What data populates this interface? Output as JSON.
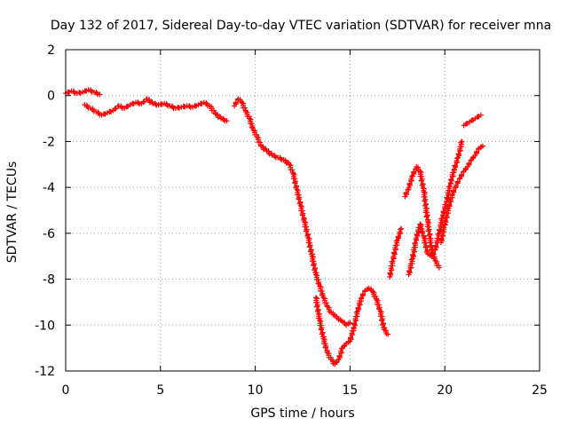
{
  "chart_data": {
    "type": "scatter",
    "title": "Day 132 of 2017, Sidereal Day-to-day VTEC variation (SDTVAR) for receiver mna",
    "xlabel": "GPS time / hours",
    "ylabel": "SDTVAR / TECUs",
    "xlim": [
      0,
      25
    ],
    "ylim": [
      -12,
      2
    ],
    "x_ticks": [
      0,
      5,
      10,
      15,
      20,
      25
    ],
    "y_ticks": [
      2,
      0,
      -2,
      -4,
      -6,
      -8,
      -10,
      -12
    ],
    "x_tick_labels": [
      "0",
      "5",
      "10",
      "15",
      "20",
      "25"
    ],
    "y_tick_labels": [
      "2",
      "0",
      "-2",
      "-4",
      "-6",
      "-8",
      "-10",
      "-12"
    ],
    "grid": true,
    "grid_style": "dotted",
    "marker": "+",
    "marker_color": "#ff0000",
    "series": [
      {
        "segments": [
          [
            [
              0.0,
              0.1
            ],
            [
              0.3,
              0.2
            ],
            [
              0.6,
              0.1
            ],
            [
              0.9,
              0.15
            ],
            [
              1.2,
              0.25
            ],
            [
              1.5,
              0.15
            ],
            [
              1.8,
              0.05
            ]
          ],
          [
            [
              1.0,
              -0.4
            ],
            [
              1.3,
              -0.55
            ],
            [
              1.6,
              -0.7
            ],
            [
              1.9,
              -0.85
            ],
            [
              2.2,
              -0.75
            ],
            [
              2.5,
              -0.65
            ],
            [
              2.8,
              -0.45
            ],
            [
              3.1,
              -0.55
            ],
            [
              3.4,
              -0.4
            ],
            [
              3.7,
              -0.3
            ],
            [
              4.0,
              -0.35
            ],
            [
              4.3,
              -0.15
            ],
            [
              4.6,
              -0.35
            ],
            [
              4.9,
              -0.4
            ],
            [
              5.2,
              -0.35
            ],
            [
              5.5,
              -0.45
            ],
            [
              5.8,
              -0.55
            ],
            [
              6.1,
              -0.5
            ],
            [
              6.4,
              -0.45
            ],
            [
              6.7,
              -0.5
            ],
            [
              7.0,
              -0.4
            ],
            [
              7.3,
              -0.3
            ],
            [
              7.6,
              -0.45
            ],
            [
              7.9,
              -0.8
            ],
            [
              8.2,
              -1.0
            ],
            [
              8.5,
              -1.1
            ]
          ],
          [
            [
              8.9,
              -0.45
            ],
            [
              9.1,
              -0.15
            ],
            [
              9.3,
              -0.3
            ],
            [
              9.5,
              -0.7
            ],
            [
              9.7,
              -1.0
            ],
            [
              9.9,
              -1.5
            ],
            [
              10.1,
              -1.8
            ],
            [
              10.3,
              -2.2
            ],
            [
              10.6,
              -2.4
            ],
            [
              10.9,
              -2.6
            ],
            [
              11.2,
              -2.7
            ],
            [
              11.5,
              -2.8
            ],
            [
              11.8,
              -3.0
            ],
            [
              12.0,
              -3.4
            ],
            [
              12.2,
              -4.1
            ],
            [
              12.4,
              -4.8
            ],
            [
              12.6,
              -5.5
            ],
            [
              12.8,
              -6.2
            ],
            [
              13.0,
              -7.0
            ],
            [
              13.2,
              -7.8
            ],
            [
              13.4,
              -8.3
            ],
            [
              13.6,
              -8.8
            ],
            [
              13.8,
              -9.2
            ],
            [
              14.0,
              -9.45
            ],
            [
              14.2,
              -9.6
            ],
            [
              14.4,
              -9.75
            ],
            [
              14.6,
              -9.85
            ],
            [
              14.8,
              -10.0
            ],
            [
              15.0,
              -9.9
            ]
          ],
          [
            [
              13.2,
              -8.8
            ],
            [
              13.4,
              -9.8
            ],
            [
              13.6,
              -10.6
            ],
            [
              13.8,
              -11.2
            ],
            [
              14.0,
              -11.5
            ],
            [
              14.2,
              -11.7
            ],
            [
              14.4,
              -11.5
            ],
            [
              14.6,
              -11.0
            ],
            [
              14.8,
              -10.8
            ],
            [
              15.0,
              -10.7
            ],
            [
              15.2,
              -10.1
            ],
            [
              15.4,
              -9.4
            ],
            [
              15.6,
              -8.8
            ],
            [
              15.8,
              -8.5
            ],
            [
              16.0,
              -8.4
            ],
            [
              16.2,
              -8.55
            ],
            [
              16.4,
              -8.9
            ],
            [
              16.6,
              -9.4
            ],
            [
              16.8,
              -10.2
            ],
            [
              17.0,
              -10.4
            ]
          ],
          [
            [
              17.1,
              -7.9
            ],
            [
              17.3,
              -7.0
            ],
            [
              17.5,
              -6.3
            ],
            [
              17.7,
              -5.8
            ]
          ],
          [
            [
              17.9,
              -4.4
            ],
            [
              18.1,
              -4.0
            ],
            [
              18.3,
              -3.5
            ],
            [
              18.5,
              -3.1
            ],
            [
              18.7,
              -3.3
            ],
            [
              18.9,
              -4.2
            ],
            [
              19.1,
              -5.5
            ],
            [
              19.3,
              -6.7
            ],
            [
              19.5,
              -7.2
            ],
            [
              19.7,
              -7.5
            ]
          ],
          [
            [
              18.1,
              -7.8
            ],
            [
              18.3,
              -7.1
            ],
            [
              18.5,
              -6.2
            ],
            [
              18.7,
              -5.6
            ],
            [
              18.9,
              -6.2
            ],
            [
              19.1,
              -6.9
            ],
            [
              19.3,
              -7.0
            ],
            [
              19.5,
              -6.7
            ],
            [
              19.7,
              -6.0
            ],
            [
              19.9,
              -5.2
            ],
            [
              20.1,
              -4.6
            ],
            [
              20.3,
              -3.8
            ],
            [
              20.5,
              -3.2
            ],
            [
              20.7,
              -2.7
            ],
            [
              20.9,
              -2.0
            ]
          ],
          [
            [
              19.8,
              -6.4
            ],
            [
              20.0,
              -5.6
            ],
            [
              20.2,
              -4.9
            ],
            [
              20.4,
              -4.3
            ],
            [
              20.6,
              -3.9
            ],
            [
              20.8,
              -3.6
            ],
            [
              21.0,
              -3.3
            ],
            [
              21.2,
              -3.1
            ],
            [
              21.4,
              -2.8
            ],
            [
              21.6,
              -2.6
            ],
            [
              21.8,
              -2.3
            ],
            [
              22.0,
              -2.2
            ]
          ],
          [
            [
              21.0,
              -1.3
            ],
            [
              21.3,
              -1.15
            ],
            [
              21.6,
              -1.0
            ],
            [
              21.9,
              -0.85
            ]
          ]
        ]
      }
    ]
  }
}
